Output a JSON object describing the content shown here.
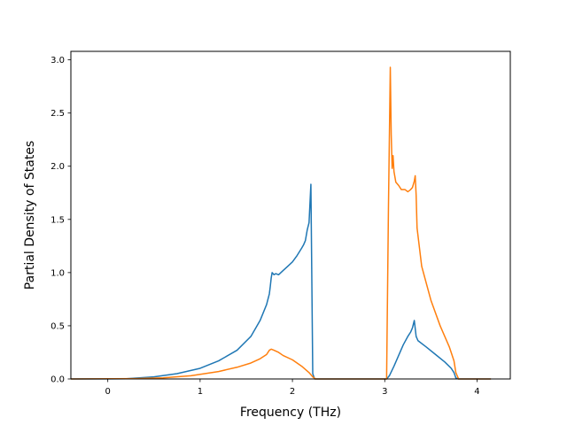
{
  "chart_data": {
    "type": "line",
    "title": "",
    "xlabel": "Frequency (THz)",
    "ylabel": "Partial Density of States",
    "xlim": [
      -0.4,
      4.36
    ],
    "ylim": [
      0,
      3.08
    ],
    "xticks": [
      0,
      1,
      2,
      3,
      4
    ],
    "xtick_labels": [
      "0",
      "1",
      "2",
      "3",
      "4"
    ],
    "yticks": [
      0,
      0.5,
      1.0,
      1.5,
      2.0,
      2.5,
      3.0
    ],
    "ytick_labels": [
      "0.0",
      "0.5",
      "1.0",
      "1.5",
      "2.0",
      "2.5",
      "3.0"
    ],
    "grid": false,
    "legend": "none",
    "series": [
      {
        "color": "#1f77b4",
        "x": [
          -0.4,
          0.2,
          0.5,
          0.75,
          1.0,
          1.2,
          1.4,
          1.55,
          1.65,
          1.72,
          1.75,
          1.76,
          1.77,
          1.78,
          1.8,
          1.82,
          1.85,
          1.9,
          1.95,
          2.0,
          2.05,
          2.1,
          2.12,
          2.14,
          2.16,
          2.18,
          2.2,
          2.22,
          2.24,
          2.6,
          3.02,
          3.05,
          3.1,
          3.15,
          3.2,
          3.25,
          3.28,
          3.3,
          3.32,
          3.34,
          3.36,
          3.45,
          3.55,
          3.65,
          3.72,
          3.75,
          3.77,
          3.8,
          4.15
        ],
        "y": [
          0,
          0.002,
          0.02,
          0.05,
          0.1,
          0.17,
          0.27,
          0.4,
          0.55,
          0.7,
          0.8,
          0.87,
          0.95,
          1.0,
          0.98,
          0.99,
          0.98,
          1.02,
          1.06,
          1.1,
          1.16,
          1.23,
          1.26,
          1.3,
          1.4,
          1.47,
          1.83,
          0.05,
          0.0,
          0.0,
          0.0,
          0.03,
          0.12,
          0.22,
          0.32,
          0.4,
          0.44,
          0.48,
          0.55,
          0.4,
          0.36,
          0.3,
          0.23,
          0.16,
          0.1,
          0.06,
          0.01,
          0.0,
          0.0
        ]
      },
      {
        "color": "#ff7f0e",
        "x": [
          -0.4,
          0.3,
          0.6,
          0.9,
          1.2,
          1.4,
          1.55,
          1.65,
          1.72,
          1.75,
          1.77,
          1.8,
          1.85,
          1.9,
          2.0,
          2.1,
          2.18,
          2.22,
          2.25,
          2.6,
          3.02,
          3.04,
          3.06,
          3.07,
          3.08,
          3.09,
          3.1,
          3.12,
          3.15,
          3.18,
          3.22,
          3.25,
          3.28,
          3.3,
          3.32,
          3.33,
          3.34,
          3.35,
          3.4,
          3.5,
          3.6,
          3.7,
          3.75,
          3.77,
          3.8,
          4.15
        ],
        "y": [
          0,
          0.003,
          0.01,
          0.03,
          0.07,
          0.11,
          0.15,
          0.19,
          0.23,
          0.27,
          0.28,
          0.27,
          0.25,
          0.22,
          0.18,
          0.12,
          0.06,
          0.02,
          0.0,
          0.0,
          0.0,
          1.6,
          2.93,
          2.3,
          1.98,
          2.1,
          1.95,
          1.85,
          1.82,
          1.78,
          1.78,
          1.76,
          1.78,
          1.8,
          1.86,
          1.91,
          1.73,
          1.42,
          1.06,
          0.74,
          0.5,
          0.3,
          0.17,
          0.06,
          0.0,
          0.0
        ]
      }
    ]
  }
}
